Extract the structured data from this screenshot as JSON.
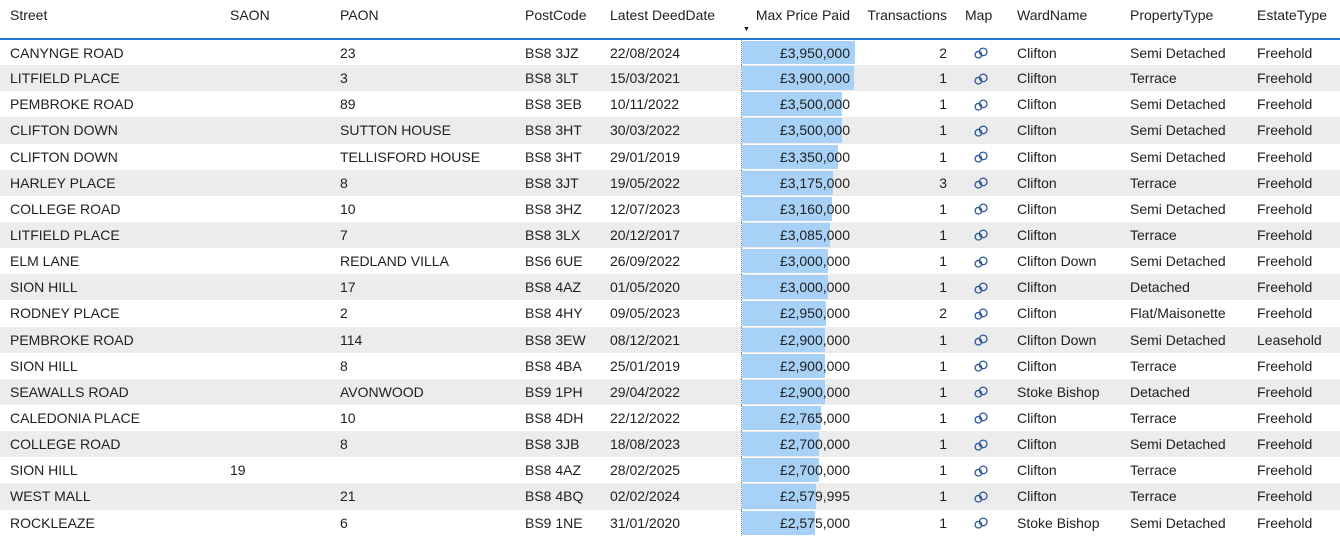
{
  "visual": {
    "type": "table",
    "sort": {
      "column": "Max Price Paid",
      "direction": "descending",
      "indicator": "▼"
    }
  },
  "colors": {
    "accent_blue": "#2478d4",
    "bar_fill": "#a7d1f7",
    "row_stripe": "#ececec",
    "link_icon": "#2b579a",
    "text_color": "#212121",
    "gridline_dotted": "#8f8f8f"
  },
  "icons": {
    "map_cell": "link-icon",
    "sort": "sort-descending-icon"
  },
  "table": {
    "bar_max_value": 3950000,
    "columns": [
      {
        "key": "street",
        "label": "Street",
        "align": "left"
      },
      {
        "key": "saon",
        "label": "SAON",
        "align": "left"
      },
      {
        "key": "paon",
        "label": "PAON",
        "align": "left"
      },
      {
        "key": "postcode",
        "label": "PostCode",
        "align": "left"
      },
      {
        "key": "deed_date",
        "label": "Latest DeedDate",
        "align": "left"
      },
      {
        "key": "price",
        "label": "Max Price Paid",
        "align": "right",
        "sorted": true
      },
      {
        "key": "transactions",
        "label": "Transactions",
        "align": "right"
      },
      {
        "key": "map",
        "label": "Map",
        "align": "left"
      },
      {
        "key": "ward",
        "label": "WardName",
        "align": "left"
      },
      {
        "key": "property_type",
        "label": "PropertyType",
        "align": "left"
      },
      {
        "key": "estate_type",
        "label": "EstateType",
        "align": "left"
      }
    ],
    "rows": [
      {
        "street": "CANYNGE ROAD",
        "saon": "",
        "paon": "23",
        "postcode": "BS8 3JZ",
        "deed_date": "22/08/2024",
        "price_display": "£3,950,000",
        "price_value": 3950000,
        "transactions": "2",
        "ward": "Clifton",
        "property_type": "Semi Detached",
        "estate_type": "Freehold"
      },
      {
        "street": "LITFIELD PLACE",
        "saon": "",
        "paon": "3",
        "postcode": "BS8 3LT",
        "deed_date": "15/03/2021",
        "price_display": "£3,900,000",
        "price_value": 3900000,
        "transactions": "1",
        "ward": "Clifton",
        "property_type": "Terrace",
        "estate_type": "Freehold"
      },
      {
        "street": "PEMBROKE ROAD",
        "saon": "",
        "paon": "89",
        "postcode": "BS8 3EB",
        "deed_date": "10/11/2022",
        "price_display": "£3,500,000",
        "price_value": 3500000,
        "transactions": "1",
        "ward": "Clifton",
        "property_type": "Semi Detached",
        "estate_type": "Freehold"
      },
      {
        "street": "CLIFTON DOWN",
        "saon": "",
        "paon": "SUTTON HOUSE",
        "postcode": "BS8 3HT",
        "deed_date": "30/03/2022",
        "price_display": "£3,500,000",
        "price_value": 3500000,
        "transactions": "1",
        "ward": "Clifton",
        "property_type": "Semi Detached",
        "estate_type": "Freehold"
      },
      {
        "street": "CLIFTON DOWN",
        "saon": "",
        "paon": "TELLISFORD HOUSE",
        "postcode": "BS8 3HT",
        "deed_date": "29/01/2019",
        "price_display": "£3,350,000",
        "price_value": 3350000,
        "transactions": "1",
        "ward": "Clifton",
        "property_type": "Semi Detached",
        "estate_type": "Freehold"
      },
      {
        "street": "HARLEY PLACE",
        "saon": "",
        "paon": "8",
        "postcode": "BS8 3JT",
        "deed_date": "19/05/2022",
        "price_display": "£3,175,000",
        "price_value": 3175000,
        "transactions": "3",
        "ward": "Clifton",
        "property_type": "Terrace",
        "estate_type": "Freehold"
      },
      {
        "street": "COLLEGE ROAD",
        "saon": "",
        "paon": "10",
        "postcode": "BS8 3HZ",
        "deed_date": "12/07/2023",
        "price_display": "£3,160,000",
        "price_value": 3160000,
        "transactions": "1",
        "ward": "Clifton",
        "property_type": "Semi Detached",
        "estate_type": "Freehold"
      },
      {
        "street": "LITFIELD PLACE",
        "saon": "",
        "paon": "7",
        "postcode": "BS8 3LX",
        "deed_date": "20/12/2017",
        "price_display": "£3,085,000",
        "price_value": 3085000,
        "transactions": "1",
        "ward": "Clifton",
        "property_type": "Terrace",
        "estate_type": "Freehold"
      },
      {
        "street": "ELM LANE",
        "saon": "",
        "paon": "REDLAND VILLA",
        "postcode": "BS6 6UE",
        "deed_date": "26/09/2022",
        "price_display": "£3,000,000",
        "price_value": 3000000,
        "transactions": "1",
        "ward": "Clifton Down",
        "property_type": "Semi Detached",
        "estate_type": "Freehold"
      },
      {
        "street": "SION HILL",
        "saon": "",
        "paon": "17",
        "postcode": "BS8 4AZ",
        "deed_date": "01/05/2020",
        "price_display": "£3,000,000",
        "price_value": 3000000,
        "transactions": "1",
        "ward": "Clifton",
        "property_type": "Detached",
        "estate_type": "Freehold"
      },
      {
        "street": "RODNEY PLACE",
        "saon": "",
        "paon": "2",
        "postcode": "BS8 4HY",
        "deed_date": "09/05/2023",
        "price_display": "£2,950,000",
        "price_value": 2950000,
        "transactions": "2",
        "ward": "Clifton",
        "property_type": "Flat/Maisonette",
        "estate_type": "Freehold"
      },
      {
        "street": "PEMBROKE ROAD",
        "saon": "",
        "paon": "114",
        "postcode": "BS8 3EW",
        "deed_date": "08/12/2021",
        "price_display": "£2,900,000",
        "price_value": 2900000,
        "transactions": "1",
        "ward": "Clifton Down",
        "property_type": "Semi Detached",
        "estate_type": "Leasehold"
      },
      {
        "street": "SION HILL",
        "saon": "",
        "paon": "8",
        "postcode": "BS8 4BA",
        "deed_date": "25/01/2019",
        "price_display": "£2,900,000",
        "price_value": 2900000,
        "transactions": "1",
        "ward": "Clifton",
        "property_type": "Terrace",
        "estate_type": "Freehold"
      },
      {
        "street": "SEAWALLS ROAD",
        "saon": "",
        "paon": "AVONWOOD",
        "postcode": "BS9 1PH",
        "deed_date": "29/04/2022",
        "price_display": "£2,900,000",
        "price_value": 2900000,
        "transactions": "1",
        "ward": "Stoke Bishop",
        "property_type": "Detached",
        "estate_type": "Freehold"
      },
      {
        "street": "CALEDONIA PLACE",
        "saon": "",
        "paon": "10",
        "postcode": "BS8 4DH",
        "deed_date": "22/12/2022",
        "price_display": "£2,765,000",
        "price_value": 2765000,
        "transactions": "1",
        "ward": "Clifton",
        "property_type": "Terrace",
        "estate_type": "Freehold"
      },
      {
        "street": "COLLEGE ROAD",
        "saon": "",
        "paon": "8",
        "postcode": "BS8 3JB",
        "deed_date": "18/08/2023",
        "price_display": "£2,700,000",
        "price_value": 2700000,
        "transactions": "1",
        "ward": "Clifton",
        "property_type": "Semi Detached",
        "estate_type": "Freehold"
      },
      {
        "street": "SION HILL",
        "saon": "19",
        "paon": "",
        "postcode": "BS8 4AZ",
        "deed_date": "28/02/2025",
        "price_display": "£2,700,000",
        "price_value": 2700000,
        "transactions": "1",
        "ward": "Clifton",
        "property_type": "Terrace",
        "estate_type": "Freehold"
      },
      {
        "street": "WEST MALL",
        "saon": "",
        "paon": "21",
        "postcode": "BS8 4BQ",
        "deed_date": "02/02/2024",
        "price_display": "£2,579,995",
        "price_value": 2579995,
        "transactions": "1",
        "ward": "Clifton",
        "property_type": "Terrace",
        "estate_type": "Freehold"
      },
      {
        "street": "ROCKLEAZE",
        "saon": "",
        "paon": "6",
        "postcode": "BS9 1NE",
        "deed_date": "31/01/2020",
        "price_display": "£2,575,000",
        "price_value": 2575000,
        "transactions": "1",
        "ward": "Stoke Bishop",
        "property_type": "Semi Detached",
        "estate_type": "Freehold"
      }
    ]
  }
}
